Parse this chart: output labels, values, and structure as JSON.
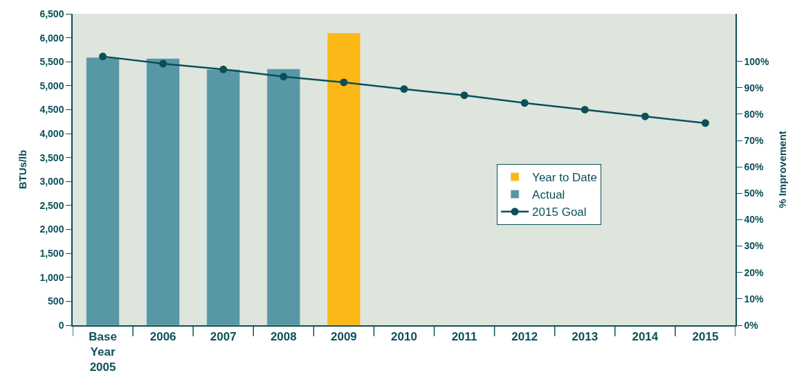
{
  "chart_data": {
    "type": "bar",
    "ylabel": "BTUs/lb",
    "y2label": "% Improvement",
    "categories": [
      "Base\nYear\n2005",
      "2006",
      "2007",
      "2008",
      "2009",
      "2010",
      "2011",
      "2012",
      "2013",
      "2014",
      "2015"
    ],
    "series": [
      {
        "name": "Year to Date",
        "color": "#fbb817",
        "values": [
          null,
          null,
          null,
          null,
          6100,
          null,
          null,
          null,
          null,
          null,
          null
        ]
      },
      {
        "name": "Actual",
        "color": "#5897a5",
        "values": [
          5590,
          5570,
          5340,
          5350,
          null,
          null,
          null,
          null,
          null,
          null,
          null
        ]
      },
      {
        "name": "2015 Goal",
        "type": "line",
        "color": "#0b4f59",
        "marker": "circle",
        "values": [
          5610,
          5460,
          5340,
          5190,
          5070,
          4930,
          4800,
          4640,
          4500,
          4360,
          4220
        ]
      }
    ],
    "ylim": [
      0,
      6500
    ],
    "yticks": [
      0,
      500,
      {
        "value": 1000,
        "label": "1,000"
      },
      {
        "value": 1500,
        "label": "1,500"
      },
      {
        "value": 2000,
        "label": "2,000"
      },
      {
        "value": 2500,
        "label": "2,500"
      },
      {
        "value": 3000,
        "label": "3,000"
      },
      {
        "value": 3500,
        "label": "3,500"
      },
      {
        "value": 4000,
        "label": "4,000"
      },
      {
        "value": 4500,
        "label": "4,500"
      },
      {
        "value": 5000,
        "label": "5,000"
      },
      {
        "value": 5500,
        "label": "5,500"
      },
      {
        "value": 6000,
        "label": "6,000"
      },
      {
        "value": 6500,
        "label": "6,500"
      }
    ],
    "y2lim": [
      0,
      118
    ],
    "y2ticks": [
      {
        "value": 0,
        "label": "0%"
      },
      {
        "value": 10,
        "label": "10%"
      },
      {
        "value": 20,
        "label": "20%"
      },
      {
        "value": 30,
        "label": "30%"
      },
      {
        "value": 40,
        "label": "40%"
      },
      {
        "value": 50,
        "label": "50%"
      },
      {
        "value": 60,
        "label": "60%"
      },
      {
        "value": 70,
        "label": "70%"
      },
      {
        "value": 80,
        "label": "80%"
      },
      {
        "value": 90,
        "label": "90%"
      },
      {
        "value": 100,
        "label": "100%"
      }
    ],
    "legend": "right",
    "grid": false
  }
}
